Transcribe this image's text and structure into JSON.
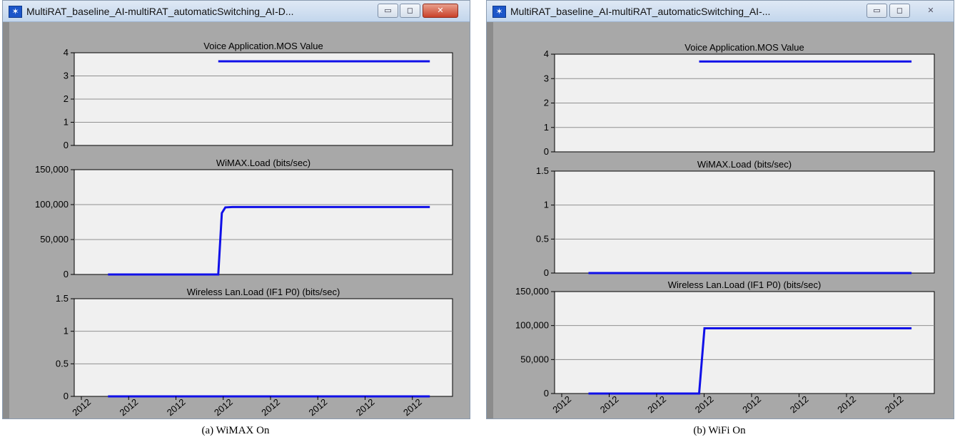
{
  "windows": [
    {
      "title": "MultiRAT_baseline_AI-multiRAT_automaticSwitching_AI-D...",
      "caption": "(a) WiMAX On",
      "x_tick_label": "2012",
      "x_tick_count": 8,
      "icons": {
        "app": "star-icon",
        "minimize": "minimize-icon",
        "maximize": "maximize-icon",
        "close": "close-icon"
      },
      "chart_data": [
        {
          "type": "line",
          "title": "Voice Application.MOS Value",
          "yticks": [
            "4",
            "3",
            "2",
            "1",
            "0"
          ],
          "ylim": [
            0,
            4
          ],
          "xlim": [
            0,
            100
          ],
          "series": [
            {
              "x": [
                40.5,
                100
              ],
              "y": [
                3.63,
                3.63
              ]
            }
          ]
        },
        {
          "type": "line",
          "title": "WiMAX.Load (bits/sec)",
          "yticks": [
            "150,000",
            "100,000",
            "50,000",
            "0"
          ],
          "ylim": [
            0,
            150000
          ],
          "xlim": [
            0,
            100
          ],
          "series": [
            {
              "x": [
                9.5,
                40.5,
                41.5,
                42.5,
                44.5,
                100
              ],
              "y": [
                0,
                0,
                88000,
                96000,
                96500,
                96500
              ]
            }
          ]
        },
        {
          "type": "line",
          "title": "Wireless Lan.Load (IF1 P0) (bits/sec)",
          "yticks": [
            "1.5",
            "1",
            "0.5",
            "0"
          ],
          "ylim": [
            0,
            1.5
          ],
          "xlim": [
            0,
            100
          ],
          "series": [
            {
              "x": [
                9.5,
                100
              ],
              "y": [
                0,
                0
              ]
            }
          ]
        }
      ]
    },
    {
      "title": "MultiRAT_baseline_AI-multiRAT_automaticSwitching_AI-...",
      "caption": "(b) WiFi On",
      "x_tick_label": "2012",
      "x_tick_count": 8,
      "icons": {
        "app": "star-icon",
        "minimize": "minimize-icon",
        "maximize": "maximize-icon",
        "close": "close-icon"
      },
      "chart_data": [
        {
          "type": "line",
          "title": "Voice Application.MOS Value",
          "yticks": [
            "4",
            "3",
            "2",
            "1",
            "0"
          ],
          "ylim": [
            0,
            4
          ],
          "xlim": [
            0,
            100
          ],
          "series": [
            {
              "x": [
                40.5,
                100
              ],
              "y": [
                3.7,
                3.7
              ]
            }
          ]
        },
        {
          "type": "line",
          "title": "WiMAX.Load (bits/sec)",
          "yticks": [
            "1.5",
            "1",
            "0.5",
            "0"
          ],
          "ylim": [
            0,
            1.5
          ],
          "xlim": [
            0,
            100
          ],
          "series": [
            {
              "x": [
                9.5,
                100
              ],
              "y": [
                0,
                0
              ]
            }
          ]
        },
        {
          "type": "line",
          "title": "Wireless Lan.Load (IF1 P0) (bits/sec)",
          "yticks": [
            "150,000",
            "100,000",
            "50,000",
            "0"
          ],
          "ylim": [
            0,
            150000
          ],
          "xlim": [
            0,
            100
          ],
          "series": [
            {
              "x": [
                9.5,
                40.5,
                42.0,
                100
              ],
              "y": [
                0,
                0,
                96000,
                96000
              ]
            }
          ]
        }
      ]
    }
  ]
}
